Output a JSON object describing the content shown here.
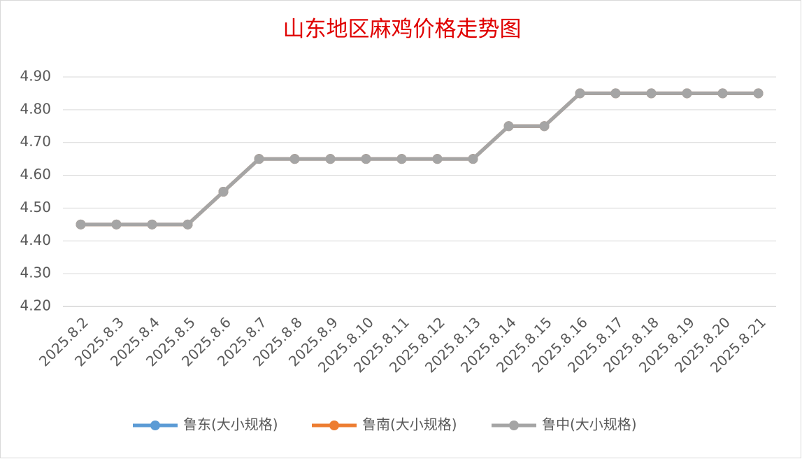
{
  "chart_data": {
    "type": "line",
    "title": "山东地区麻鸡价格走势图",
    "categories": [
      "2025.8.2",
      "2025.8.3",
      "2025.8.4",
      "2025.8.5",
      "2025.8.6",
      "2025.8.7",
      "2025.8.8",
      "2025.8.9",
      "2025.8.10",
      "2025.8.11",
      "2025.8.12",
      "2025.8.13",
      "2025.8.14",
      "2025.8.15",
      "2025.8.16",
      "2025.8.17",
      "2025.8.18",
      "2025.8.19",
      "2025.8.20",
      "2025.8.21"
    ],
    "series": [
      {
        "name": "鲁东(大小规格)",
        "color": "#5b9bd5",
        "values": [
          4.45,
          4.45,
          4.45,
          4.45,
          4.55,
          4.65,
          4.65,
          4.65,
          4.65,
          4.65,
          4.65,
          4.65,
          4.75,
          4.75,
          4.85,
          4.85,
          4.85,
          4.85,
          4.85,
          4.85
        ]
      },
      {
        "name": "鲁南(大小规格)",
        "color": "#ed7d31",
        "values": [
          4.45,
          4.45,
          4.45,
          4.45,
          4.55,
          4.65,
          4.65,
          4.65,
          4.65,
          4.65,
          4.65,
          4.65,
          4.75,
          4.75,
          4.85,
          4.85,
          4.85,
          4.85,
          4.85,
          4.85
        ]
      },
      {
        "name": "鲁中(大小规格)",
        "color": "#a5a5a5",
        "values": [
          4.45,
          4.45,
          4.45,
          4.45,
          4.55,
          4.65,
          4.65,
          4.65,
          4.65,
          4.65,
          4.65,
          4.65,
          4.75,
          4.75,
          4.85,
          4.85,
          4.85,
          4.85,
          4.85,
          4.85
        ]
      }
    ],
    "ylim": [
      4.2,
      4.9
    ],
    "yticks": [
      {
        "value": 4.2,
        "label": "4.20"
      },
      {
        "value": 4.3,
        "label": "4.30"
      },
      {
        "value": 4.4,
        "label": "4.40"
      },
      {
        "value": 4.5,
        "label": "4.50"
      },
      {
        "value": 4.6,
        "label": "4.60"
      },
      {
        "value": 4.7,
        "label": "4.70"
      },
      {
        "value": 4.8,
        "label": "4.80"
      },
      {
        "value": 4.9,
        "label": "4.90"
      }
    ],
    "grid": true,
    "legend": "bottom"
  }
}
